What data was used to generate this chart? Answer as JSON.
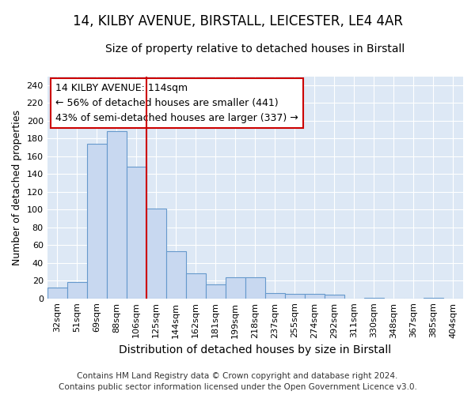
{
  "title1": "14, KILBY AVENUE, BIRSTALL, LEICESTER, LE4 4AR",
  "title2": "Size of property relative to detached houses in Birstall",
  "xlabel": "Distribution of detached houses by size in Birstall",
  "ylabel": "Number of detached properties",
  "categories": [
    "32sqm",
    "51sqm",
    "69sqm",
    "88sqm",
    "106sqm",
    "125sqm",
    "144sqm",
    "162sqm",
    "181sqm",
    "199sqm",
    "218sqm",
    "237sqm",
    "255sqm",
    "274sqm",
    "292sqm",
    "311sqm",
    "330sqm",
    "348sqm",
    "367sqm",
    "385sqm",
    "404sqm"
  ],
  "values": [
    12,
    18,
    174,
    188,
    148,
    101,
    53,
    28,
    16,
    24,
    24,
    6,
    5,
    5,
    4,
    0,
    1,
    0,
    0,
    1,
    0
  ],
  "bar_color": "#c8d8f0",
  "bar_edge_color": "#6699cc",
  "vline_color": "#cc0000",
  "vline_x": 4.5,
  "annotation_line1": "14 KILBY AVENUE: 114sqm",
  "annotation_line2": "← 56% of detached houses are smaller (441)",
  "annotation_line3": "43% of semi-detached houses are larger (337) →",
  "annotation_box_facecolor": "#ffffff",
  "annotation_box_edgecolor": "#cc0000",
  "ylim": [
    0,
    250
  ],
  "yticks": [
    0,
    20,
    40,
    60,
    80,
    100,
    120,
    140,
    160,
    180,
    200,
    220,
    240
  ],
  "fig_bg_color": "#ffffff",
  "plot_bg_color": "#dde8f5",
  "grid_color": "#ffffff",
  "title1_fontsize": 12,
  "title2_fontsize": 10,
  "xlabel_fontsize": 10,
  "ylabel_fontsize": 9,
  "tick_fontsize": 8,
  "annotation_fontsize": 9,
  "footer_fontsize": 7.5,
  "footer1": "Contains HM Land Registry data © Crown copyright and database right 2024.",
  "footer2": "Contains public sector information licensed under the Open Government Licence v3.0."
}
